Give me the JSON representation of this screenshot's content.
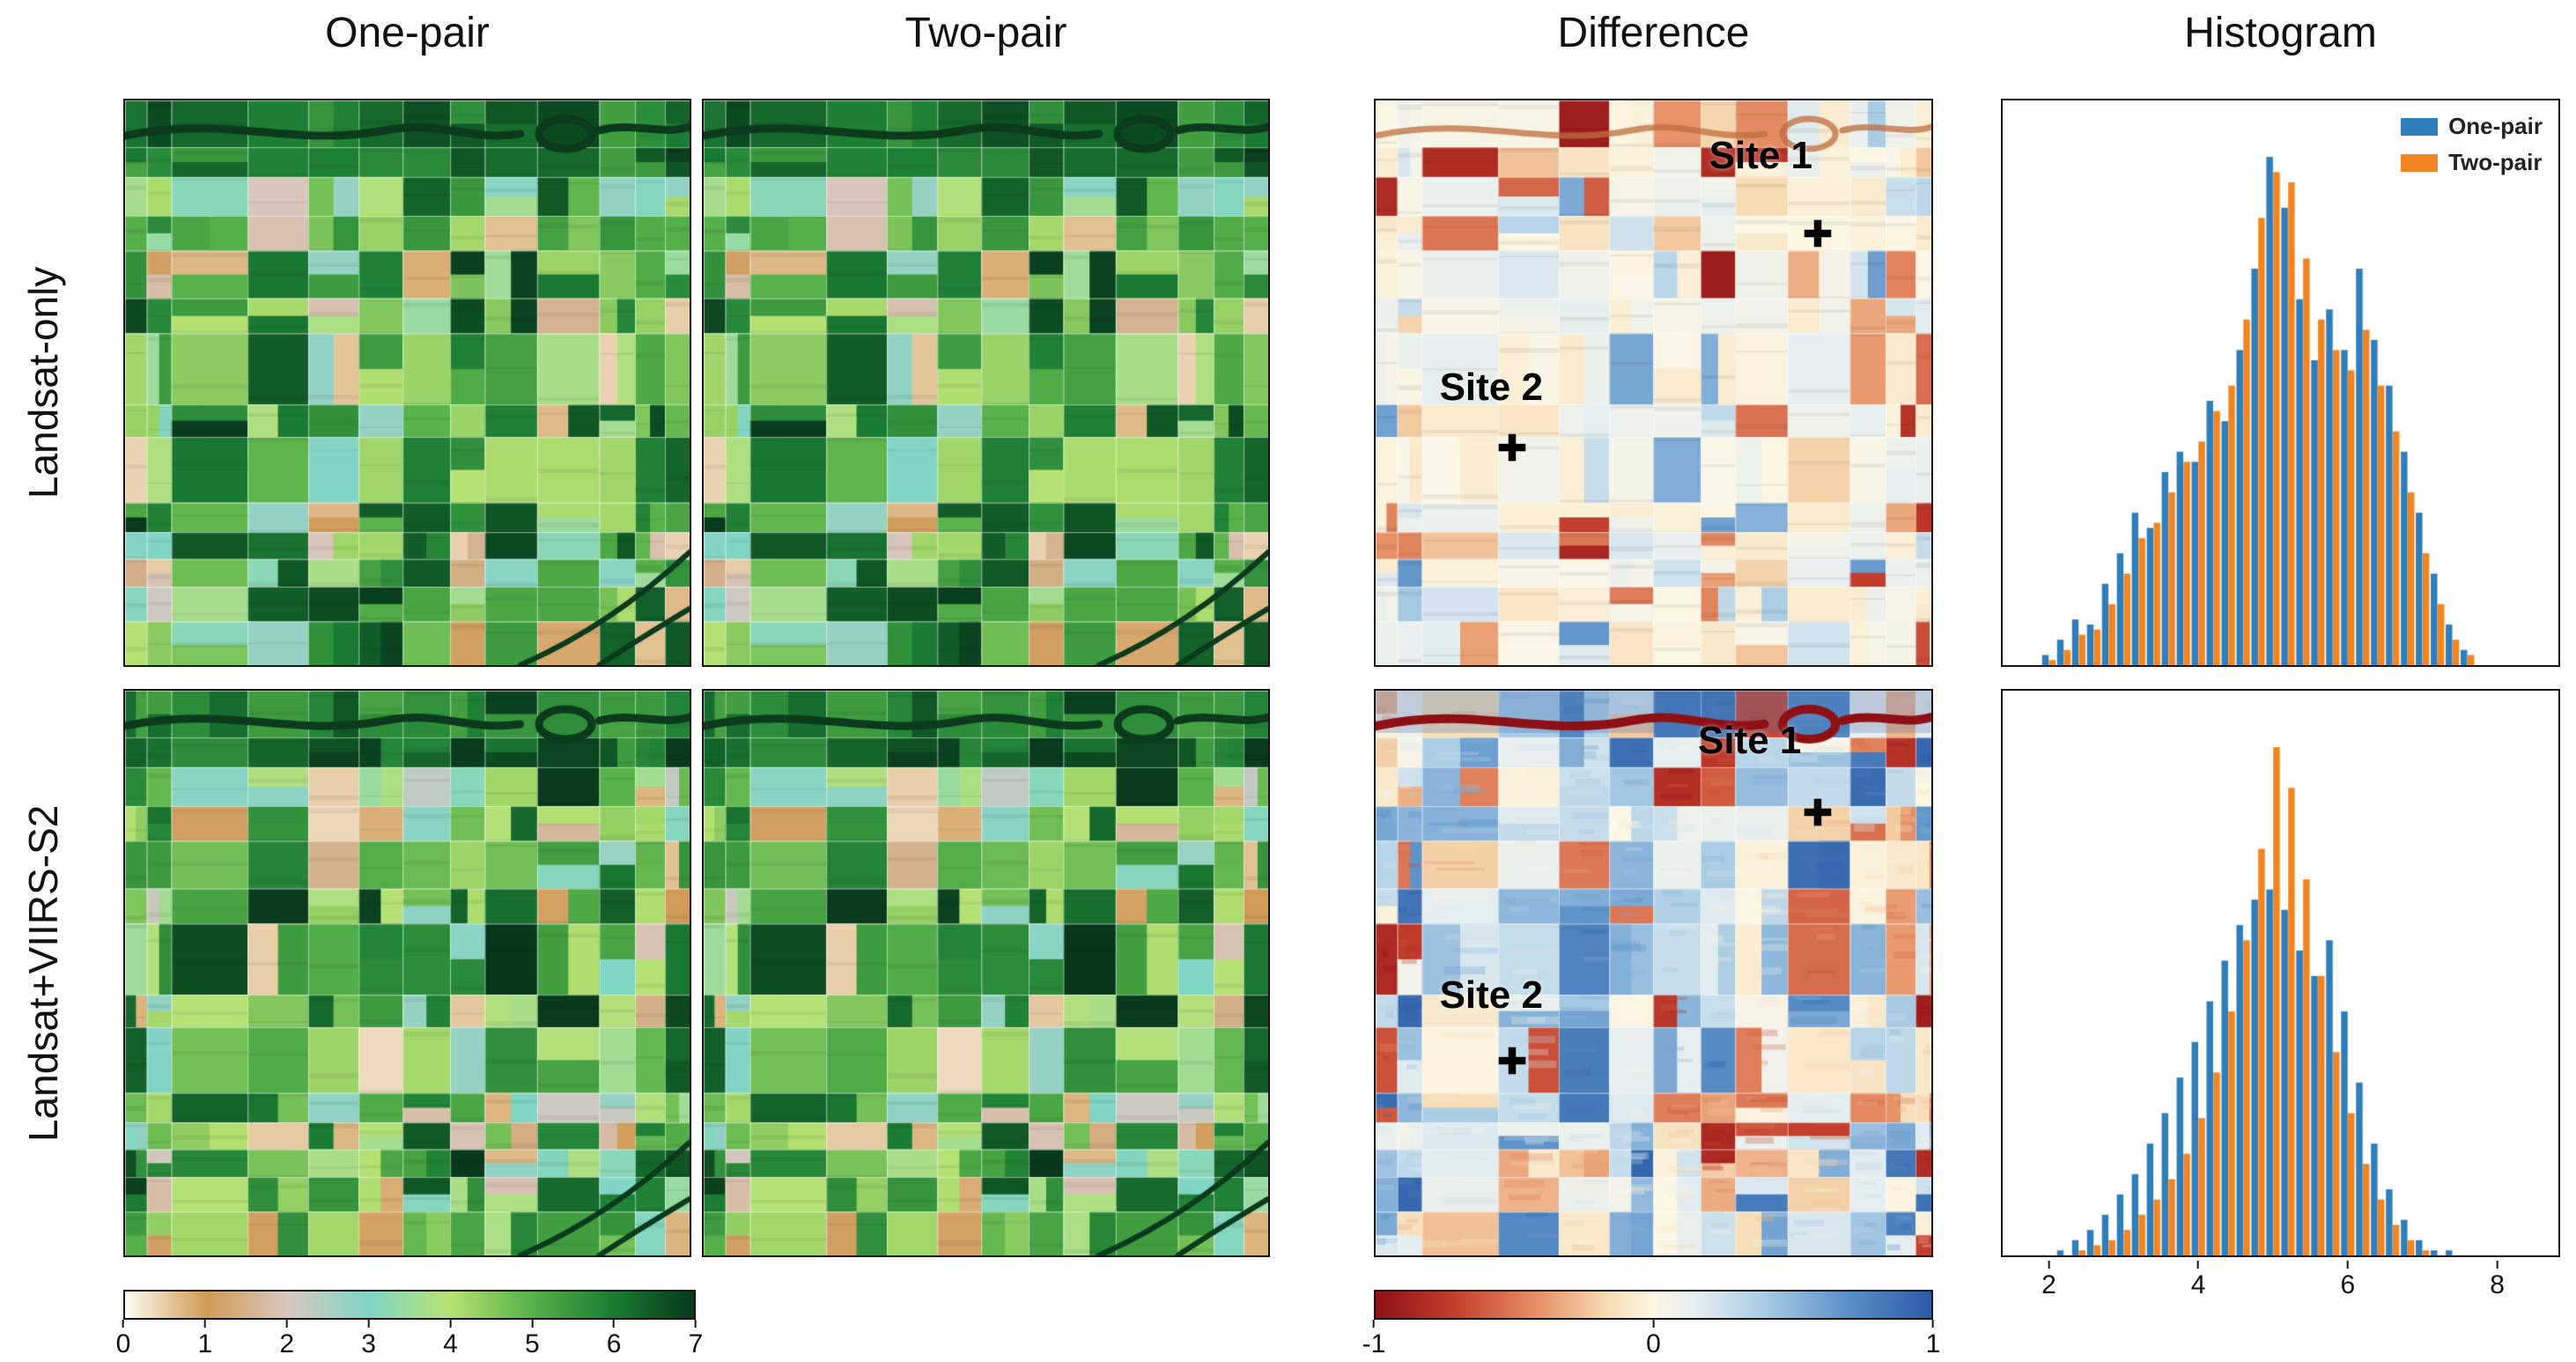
{
  "figure": {
    "columns": [
      "One-pair",
      "Two-pair",
      "Difference",
      "Histogram"
    ],
    "rows": [
      "Landsat-only",
      "Landsat+VIIRS-S2"
    ],
    "sites": {
      "site1": "Site 1",
      "site2": "Site 2"
    }
  },
  "legend": {
    "items": [
      {
        "label": "One-pair"
      },
      {
        "label": "Two-pair"
      }
    ]
  },
  "colors": {
    "hist_blue": "#2e7ebc",
    "hist_orange": "#f28520",
    "et_cmap": [
      [
        0,
        "#fdfcf3"
      ],
      [
        0.143,
        "#d09b56"
      ],
      [
        0.286,
        "#d8c7bf"
      ],
      [
        0.429,
        "#7fd5c6"
      ],
      [
        0.571,
        "#b7e173"
      ],
      [
        0.714,
        "#57b249"
      ],
      [
        0.857,
        "#1a7d33"
      ],
      [
        1,
        "#07371b"
      ]
    ],
    "diff_cmap": [
      [
        0,
        "#8e1117"
      ],
      [
        0.14,
        "#c43d2c"
      ],
      [
        0.3,
        "#e8956a"
      ],
      [
        0.42,
        "#f7ddb5"
      ],
      [
        0.5,
        "#fcf6e4"
      ],
      [
        0.58,
        "#e3edf1"
      ],
      [
        0.7,
        "#a8cbe4"
      ],
      [
        0.85,
        "#5a90c9"
      ],
      [
        1,
        "#2c5ba6"
      ]
    ]
  },
  "colorbars": {
    "et": {
      "ticks": [
        "0",
        "1",
        "2",
        "3",
        "4",
        "5",
        "6",
        "7"
      ],
      "range": [
        0,
        7
      ]
    },
    "diff": {
      "ticks": [
        "-1",
        "0",
        "1"
      ],
      "range": [
        -1,
        1
      ]
    }
  },
  "maps": {
    "layout_seed": 7,
    "et_panels": [
      {
        "id": "et-1",
        "row": "Landsat-only",
        "column": "One-pair",
        "value_seed": 11
      },
      {
        "id": "et-2",
        "row": "Landsat-only",
        "column": "Two-pair",
        "value_seed": 11
      },
      {
        "id": "et-3",
        "row": "Landsat+VIIRS-S2",
        "column": "One-pair",
        "value_seed": 13
      },
      {
        "id": "et-4",
        "row": "Landsat+VIIRS-S2",
        "column": "Two-pair",
        "value_seed": 13
      }
    ],
    "diff_panels": [
      {
        "id": "diff-1",
        "row": "Landsat-only",
        "intensity": "low",
        "value_seed": 21,
        "sites": [
          {
            "text_key": "site1",
            "label": [
              0.6,
              0.06
            ],
            "marker": [
              0.795,
              0.235
            ]
          },
          {
            "text_key": "site2",
            "label": [
              0.115,
              0.47
            ],
            "marker": [
              0.245,
              0.615
            ]
          }
        ]
      },
      {
        "id": "diff-2",
        "row": "Landsat+VIIRS-S2",
        "intensity": "high",
        "value_seed": 22,
        "sites": [
          {
            "text_key": "site1",
            "label": [
              0.58,
              0.05
            ],
            "marker": [
              0.795,
              0.215
            ]
          },
          {
            "text_key": "site2",
            "label": [
              0.115,
              0.5
            ],
            "marker": [
              0.245,
              0.655
            ]
          }
        ]
      }
    ]
  },
  "chart_data": [
    {
      "type": "bar",
      "title": "Histogram — Landsat-only",
      "xlabel": "",
      "ylabel": "",
      "xlim": [
        1.5,
        8.7
      ],
      "xticks": [
        2,
        4,
        6,
        8
      ],
      "grid": false,
      "legend_position": "upper right",
      "x": [
        2.0,
        2.2,
        2.4,
        2.6,
        2.8,
        3.0,
        3.2,
        3.4,
        3.6,
        3.8,
        4.0,
        4.2,
        4.4,
        4.6,
        4.8,
        5.0,
        5.2,
        5.4,
        5.6,
        5.8,
        6.0,
        6.2,
        6.4,
        6.6,
        6.8,
        7.0,
        7.2,
        7.4,
        7.6
      ],
      "series": [
        {
          "name": "One-pair",
          "color": "#2e7ebc",
          "values": [
            0.02,
            0.05,
            0.09,
            0.08,
            0.16,
            0.22,
            0.3,
            0.27,
            0.38,
            0.42,
            0.4,
            0.52,
            0.48,
            0.62,
            0.78,
            1.0,
            0.9,
            0.72,
            0.6,
            0.7,
            0.62,
            0.78,
            0.64,
            0.55,
            0.42,
            0.3,
            0.18,
            0.08,
            0.03
          ]
        },
        {
          "name": "Two-pair",
          "color": "#f28520",
          "values": [
            0.01,
            0.03,
            0.06,
            0.07,
            0.12,
            0.18,
            0.25,
            0.28,
            0.34,
            0.4,
            0.44,
            0.5,
            0.55,
            0.68,
            0.88,
            0.97,
            0.95,
            0.8,
            0.68,
            0.62,
            0.58,
            0.66,
            0.55,
            0.46,
            0.34,
            0.22,
            0.12,
            0.05,
            0.02
          ]
        }
      ]
    },
    {
      "type": "bar",
      "title": "Histogram — Landsat+VIIRS-S2",
      "xlabel": "",
      "ylabel": "",
      "xlim": [
        1.5,
        8.7
      ],
      "xticks": [
        2,
        4,
        6,
        8
      ],
      "grid": false,
      "legend_position": "none",
      "x": [
        2.2,
        2.4,
        2.6,
        2.8,
        3.0,
        3.2,
        3.4,
        3.6,
        3.8,
        4.0,
        4.2,
        4.4,
        4.6,
        4.8,
        5.0,
        5.2,
        5.4,
        5.6,
        5.8,
        6.0,
        6.2,
        6.4,
        6.6,
        6.8,
        7.0,
        7.2,
        7.4
      ],
      "series": [
        {
          "name": "One-pair",
          "color": "#2e7ebc",
          "values": [
            0.01,
            0.03,
            0.05,
            0.08,
            0.12,
            0.16,
            0.22,
            0.28,
            0.35,
            0.42,
            0.5,
            0.58,
            0.65,
            0.7,
            0.72,
            0.68,
            0.6,
            0.55,
            0.62,
            0.48,
            0.34,
            0.22,
            0.13,
            0.07,
            0.03,
            0.01,
            0.01
          ]
        },
        {
          "name": "Two-pair",
          "color": "#f28520",
          "values": [
            0.0,
            0.01,
            0.02,
            0.03,
            0.05,
            0.08,
            0.11,
            0.15,
            0.2,
            0.27,
            0.36,
            0.48,
            0.62,
            0.8,
            1.0,
            0.92,
            0.74,
            0.55,
            0.4,
            0.28,
            0.18,
            0.11,
            0.06,
            0.03,
            0.01,
            0.0,
            0.0
          ]
        }
      ]
    }
  ]
}
